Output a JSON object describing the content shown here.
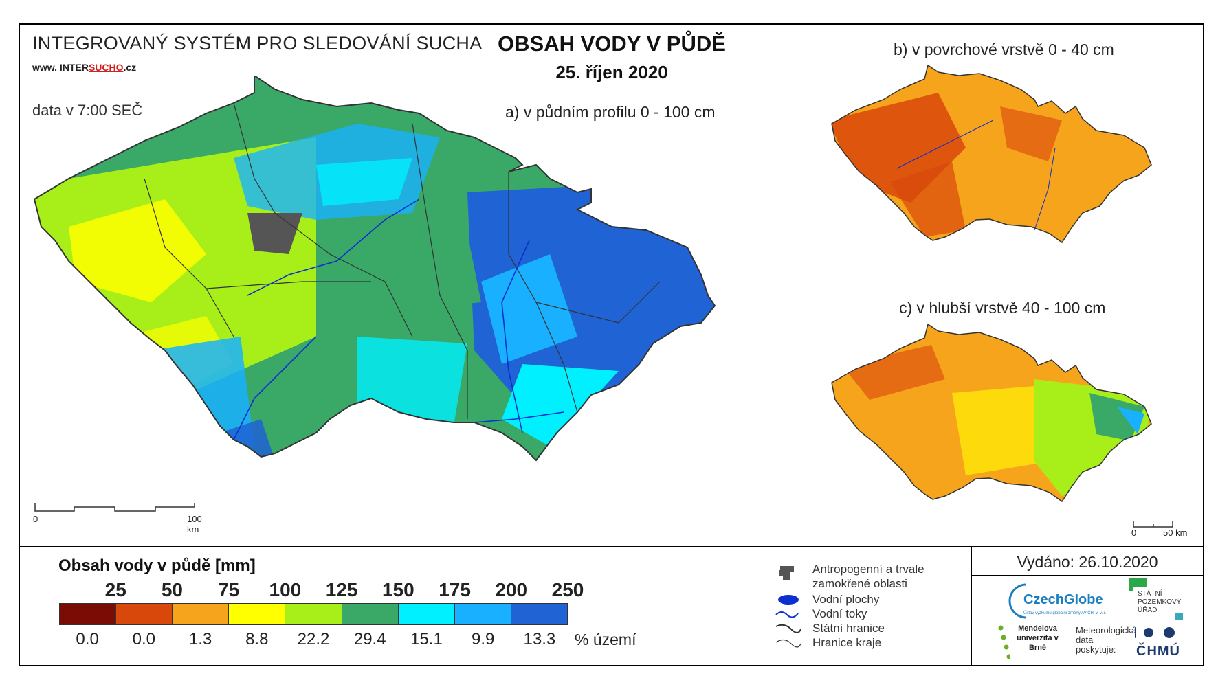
{
  "header": {
    "system_title": "INTEGROVANÝ SYSTÉM PRO SLEDOVÁNÍ SUCHA",
    "website_prefix": "www. INTER",
    "website_highlight": "SUCHO",
    "website_suffix": ".cz",
    "data_time": "data v 7:00 SEČ",
    "main_title": "OBSAH VODY V PŮDĚ",
    "date": "25. říjen 2020"
  },
  "maps": {
    "a_label": "a) v půdním profilu 0 - 100 cm",
    "b_label": "b) v povrchové vrstvě 0 - 40 cm",
    "c_label": "c) v hlubší vrstvě 40 - 100 cm",
    "scale_main": {
      "zero": "0",
      "end": "100 km"
    },
    "scale_small": {
      "zero": "0",
      "end": "50 km"
    }
  },
  "legend": {
    "title": "Obsah vody v půdě  [mm]",
    "ticks": [
      "25",
      "50",
      "75",
      "100",
      "125",
      "150",
      "175",
      "200",
      "250"
    ],
    "colors": [
      "#7a0b05",
      "#d9480b",
      "#f7a41d",
      "#ffff00",
      "#a8ef1a",
      "#3aa867",
      "#00f0ff",
      "#19b1ff",
      "#1f63d4"
    ],
    "percentages": [
      "0.0",
      "0.0",
      "1.3",
      "8.8",
      "22.2",
      "29.4",
      "15.1",
      "9.9",
      "13.3"
    ],
    "percent_unit": "% území"
  },
  "symbols": [
    {
      "icon": "anthropogenic-area-icon",
      "label": "Antropogenní a trvale zamokřené oblasti"
    },
    {
      "icon": "water-body-icon",
      "label": "Vodní plochy"
    },
    {
      "icon": "river-icon",
      "label": "Vodní toky"
    },
    {
      "icon": "state-border-icon",
      "label": "Státní hranice"
    },
    {
      "icon": "region-border-icon",
      "label": "Hranice kraje"
    }
  ],
  "issued": "Vydáno: 26.10.2020",
  "logos": {
    "czechglobe": "CzechGlobe",
    "czechglobe_sub": "Ústav výzkumu globální změny AV ČR, v. v. i.",
    "spu": "STÁTNÍ POZEMKOVÝ ÚŘAD",
    "mendel": "Mendelova univerzita v Brně",
    "meteo": "Meteorologická data poskytuje:",
    "chmu": "ČHMÚ"
  }
}
